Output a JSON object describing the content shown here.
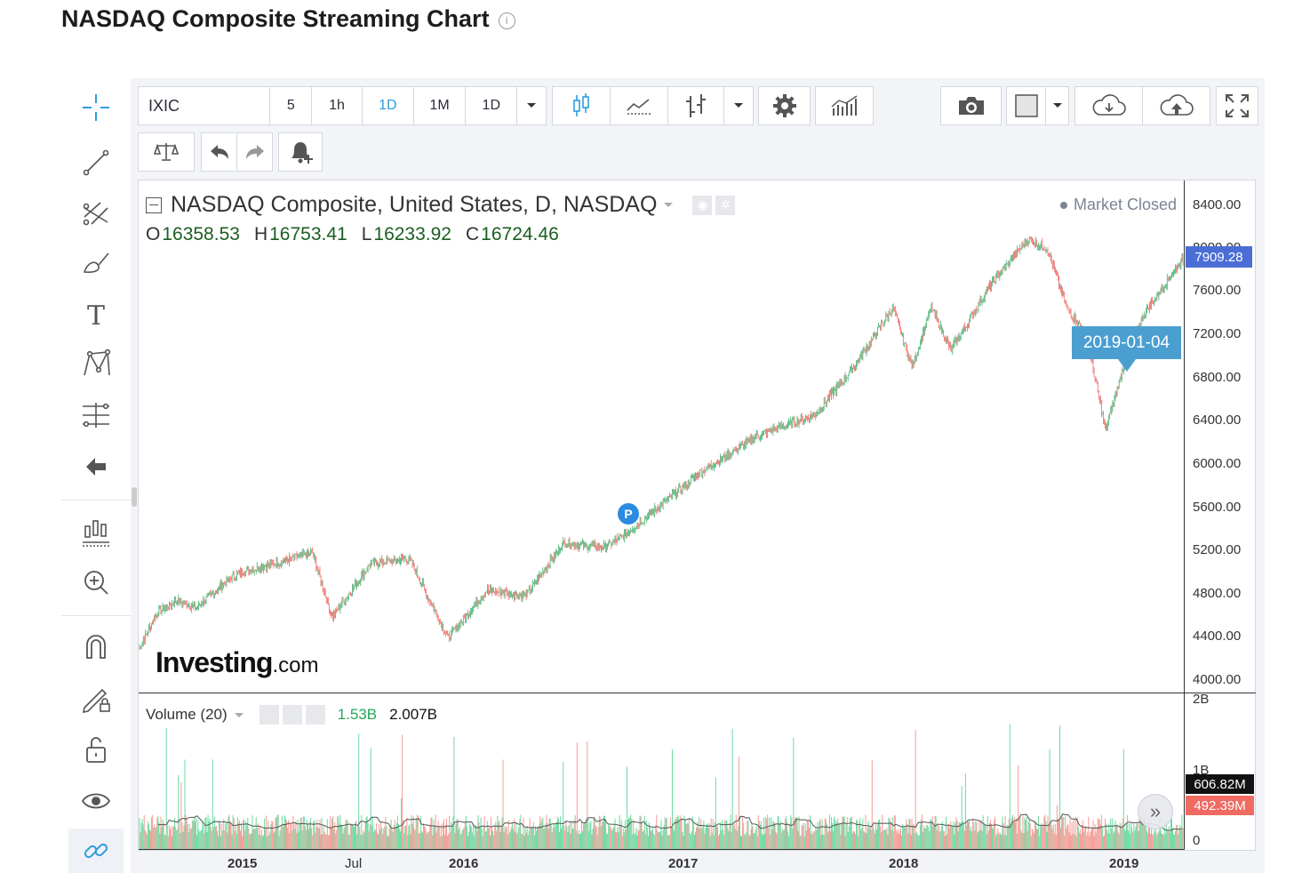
{
  "page": {
    "title": "NASDAQ Composite Streaming Chart",
    "info_icon": "i"
  },
  "toolbar": {
    "symbol": "IXIC",
    "intervals": [
      "5",
      "1h",
      "1D",
      "1M",
      "1D"
    ],
    "active_interval_index": 2,
    "icons": [
      "candles-icon",
      "line-chart-icon",
      "bars-icon",
      "gear-icon",
      "indicators-icon",
      "camera-icon",
      "color-box-icon",
      "cloud-download-icon",
      "cloud-upload-icon",
      "fullscreen-icon",
      "scale-icon",
      "undo-icon",
      "redo-icon",
      "alert-add-icon"
    ]
  },
  "left_tools": [
    "crosshair-icon",
    "trend-line-icon",
    "pitchfork-icon",
    "brush-icon",
    "text-icon",
    "pattern-icon",
    "fib-icon",
    "back-arrow-icon",
    "long-short-icon",
    "zoom-in-icon",
    "magnet-icon",
    "lock-drawing-icon",
    "unlock-icon",
    "eye-icon",
    "link-icon"
  ],
  "legend": {
    "title": "NASDAQ Composite, United States, D, NASDAQ",
    "open_label": "O",
    "open": "16358.53",
    "high_label": "H",
    "high": "16753.41",
    "low_label": "L",
    "low": "16233.92",
    "close_label": "C",
    "close": "16724.46",
    "market_status": "Market Closed"
  },
  "price_axis": {
    "labels": [
      "8400.00",
      "8000.00",
      "7600.00",
      "7200.00",
      "6800.00",
      "6400.00",
      "6000.00",
      "5600.00",
      "5200.00",
      "4800.00",
      "4400.00",
      "4000.00"
    ],
    "last_price": "7909.28",
    "last_price_color": "#4a6ed6"
  },
  "crosshair_tooltip": "2019-01-04",
  "marker": "P",
  "watermark": {
    "brand": "Investing",
    "domain": ".com"
  },
  "volume": {
    "legend": "Volume (20)",
    "value_a": "1.53B",
    "value_b": "2.007B",
    "axis_labels": [
      "2B",
      "1B",
      "0"
    ],
    "tag_up": "606.82M",
    "tag_down": "492.39M",
    "up_color": "#6fdca4",
    "down_color": "#f5a09a"
  },
  "time_axis": [
    {
      "label": "2015",
      "bold": true
    },
    {
      "label": "Jul",
      "bold": false
    },
    {
      "label": "2016",
      "bold": true
    },
    {
      "label": "2017",
      "bold": true
    },
    {
      "label": "2018",
      "bold": true
    },
    {
      "label": "2019",
      "bold": true
    }
  ],
  "chart_data": {
    "type": "candlestick",
    "title": "NASDAQ Composite, United States, D, NASDAQ",
    "x_range": [
      "2014-10",
      "2019-04"
    ],
    "ylim": [
      3900,
      8550
    ],
    "series": [
      {
        "values_approx": [
          [
            "2014-10",
            4250
          ],
          [
            "2014-11",
            4600
          ],
          [
            "2014-12",
            4700
          ],
          [
            "2015-01",
            4640
          ],
          [
            "2015-03",
            4950
          ],
          [
            "2015-05",
            5050
          ],
          [
            "2015-07",
            5150
          ],
          [
            "2015-08",
            4550
          ],
          [
            "2015-10",
            5050
          ],
          [
            "2015-12",
            5100
          ],
          [
            "2016-02",
            4350
          ],
          [
            "2016-04",
            4800
          ],
          [
            "2016-06",
            4750
          ],
          [
            "2016-08",
            5250
          ],
          [
            "2016-10",
            5200
          ],
          [
            "2016-11",
            5300
          ],
          [
            "2017-01",
            5600
          ],
          [
            "2017-03",
            5900
          ],
          [
            "2017-06",
            6250
          ],
          [
            "2017-09",
            6450
          ],
          [
            "2017-11",
            6900
          ],
          [
            "2018-01",
            7450
          ],
          [
            "2018-02",
            6900
          ],
          [
            "2018-03",
            7450
          ],
          [
            "2018-04",
            7050
          ],
          [
            "2018-06",
            7650
          ],
          [
            "2018-08",
            8100
          ],
          [
            "2018-09",
            8000
          ],
          [
            "2018-10",
            7450
          ],
          [
            "2018-11",
            7200
          ],
          [
            "2018-12",
            6300
          ],
          [
            "2019-01",
            6950
          ],
          [
            "2019-02",
            7400
          ],
          [
            "2019-03",
            7650
          ],
          [
            "2019-04",
            7909.28
          ]
        ]
      }
    ]
  }
}
